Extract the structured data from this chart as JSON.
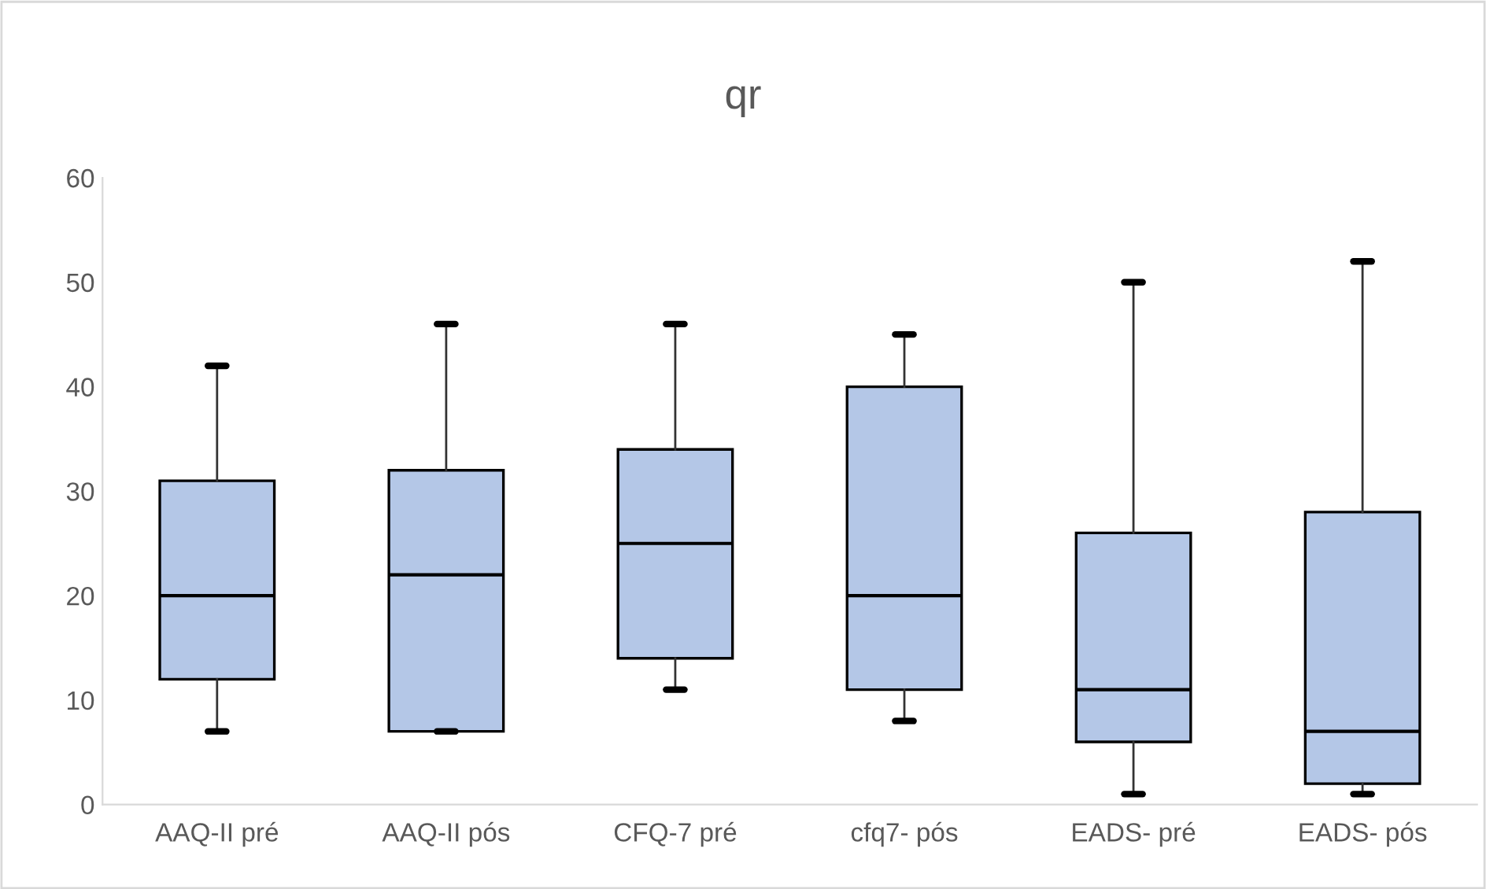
{
  "chart_data": {
    "type": "box",
    "title": "qr",
    "categories": [
      "AAQ-II pré",
      "AAQ-II pós",
      "CFQ-7 pré",
      "cfq7- pós",
      "EADS- pré",
      "EADS- pós"
    ],
    "boxes": [
      {
        "low": 7,
        "q1": 12,
        "median": 20,
        "q3": 31,
        "high": 42
      },
      {
        "low": 7,
        "q1": 7,
        "median": 22,
        "q3": 32,
        "high": 46
      },
      {
        "low": 11,
        "q1": 14,
        "median": 25,
        "q3": 34,
        "high": 46
      },
      {
        "low": 8,
        "q1": 11,
        "median": 20,
        "q3": 40,
        "high": 45
      },
      {
        "low": 1,
        "q1": 6,
        "median": 11,
        "q3": 26,
        "high": 50
      },
      {
        "low": 1,
        "q1": 2,
        "median": 7,
        "q3": 28,
        "high": 52
      }
    ],
    "color": "#b4c7e7",
    "ylim": [
      0,
      60
    ],
    "yticks": [
      0,
      10,
      20,
      30,
      40,
      50,
      60
    ],
    "grid": false
  }
}
